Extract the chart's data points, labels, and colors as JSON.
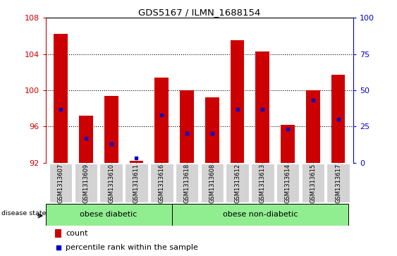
{
  "title": "GDS5167 / ILMN_1688154",
  "samples": [
    "GSM1313607",
    "GSM1313609",
    "GSM1313610",
    "GSM1313611",
    "GSM1313616",
    "GSM1313618",
    "GSM1313608",
    "GSM1313612",
    "GSM1313613",
    "GSM1313614",
    "GSM1313615",
    "GSM1313617"
  ],
  "count_values": [
    106.2,
    97.2,
    99.4,
    92.2,
    101.4,
    100.0,
    99.2,
    105.5,
    104.3,
    96.2,
    100.0,
    101.7
  ],
  "percentile_values": [
    37,
    17,
    13,
    3,
    33,
    20,
    20,
    37,
    37,
    23,
    43,
    30
  ],
  "ylim_left": [
    92,
    108
  ],
  "ylim_right": [
    0,
    100
  ],
  "yticks_left": [
    92,
    96,
    100,
    104,
    108
  ],
  "yticks_right": [
    0,
    25,
    50,
    75,
    100
  ],
  "bar_color": "#cc0000",
  "dot_color": "#0000cc",
  "group1_label": "obese diabetic",
  "group2_label": "obese non-diabetic",
  "group1_count": 5,
  "group2_count": 7,
  "disease_state_label": "disease state",
  "legend_count_label": "count",
  "legend_pct_label": "percentile rank within the sample",
  "group_color": "#90ee90",
  "tick_color_left": "#cc0000",
  "tick_color_right": "#0000cc",
  "background_color": "#ffffff",
  "plot_bg_color": "#ffffff",
  "xticklabel_bg": "#d3d3d3"
}
